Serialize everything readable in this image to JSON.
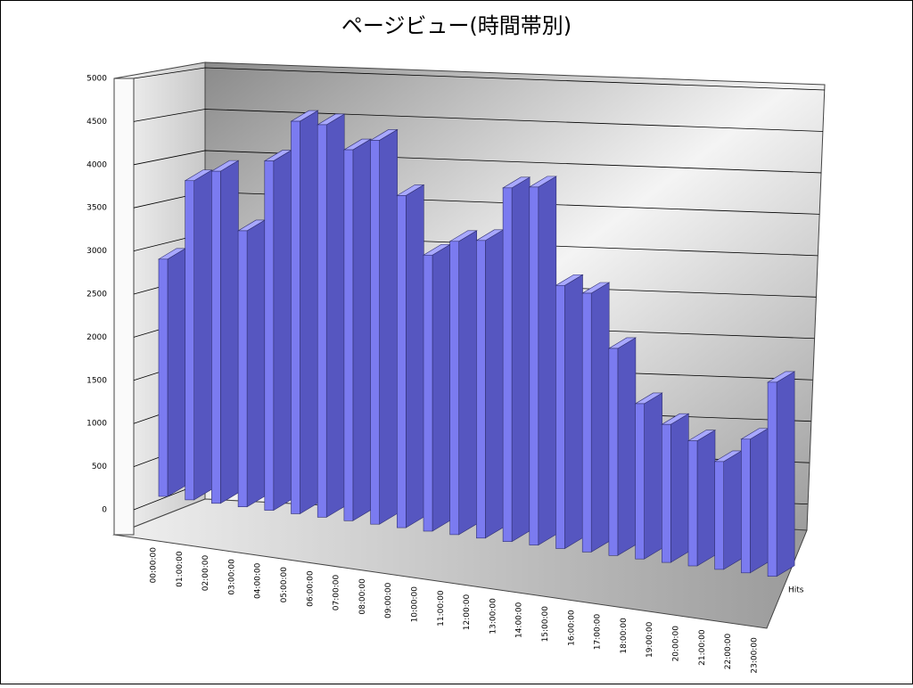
{
  "chart_data": {
    "type": "bar3d",
    "title": "ページビュー(時間帯別)",
    "categories": [
      "00:00:00",
      "01:00:00",
      "02:00:00",
      "03:00:00",
      "04:00:00",
      "05:00:00",
      "06:00:00",
      "07:00:00",
      "08:00:00",
      "09:00:00",
      "10:00:00",
      "11:00:00",
      "12:00:00",
      "13:00:00",
      "14:00:00",
      "15:00:00",
      "16:00:00",
      "17:00:00",
      "18:00:00",
      "19:00:00",
      "20:00:00",
      "21:00:00",
      "22:00:00",
      "23:00:00"
    ],
    "series": [
      {
        "name": "Hits",
        "color": "#7b7bf0",
        "values": [
          2750,
          3700,
          3850,
          3200,
          4050,
          4550,
          4550,
          4300,
          4450,
          3850,
          3200,
          3400,
          3450,
          4100,
          4150,
          3050,
          3000,
          2400,
          1800,
          1600,
          1450,
          1250,
          1550,
          2250
        ]
      }
    ],
    "ylim": [
      0,
      5000
    ],
    "yticks": [
      0,
      500,
      1000,
      1500,
      2000,
      2500,
      3000,
      3500,
      4000,
      4500,
      5000
    ],
    "grid": true
  }
}
